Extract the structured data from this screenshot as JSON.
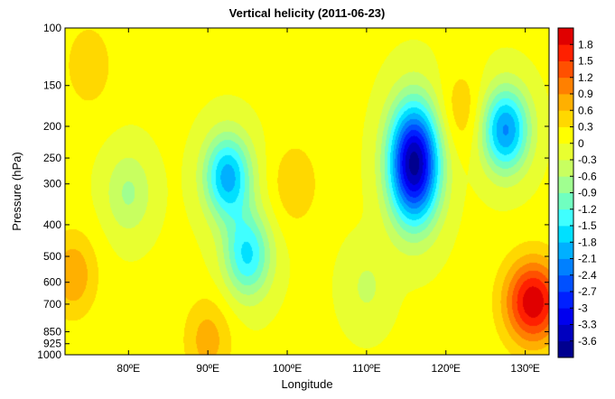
{
  "chart_data": {
    "type": "heatmap",
    "title": "Vertical helicity (2011-06-23)",
    "xlabel": "Longitude",
    "ylabel": "Pressure (hPa)",
    "x_range": [
      72,
      133
    ],
    "y_range": [
      100,
      1000
    ],
    "y_scale": "log",
    "x_ticks": [
      {
        "value": 80,
        "label": "80ºE"
      },
      {
        "value": 90,
        "label": "90ºE"
      },
      {
        "value": 100,
        "label": "100ºE"
      },
      {
        "value": 110,
        "label": "110ºE"
      },
      {
        "value": 120,
        "label": "120ºE"
      },
      {
        "value": 130,
        "label": "130ºE"
      }
    ],
    "y_ticks": [
      {
        "value": 100,
        "label": "100"
      },
      {
        "value": 150,
        "label": "150"
      },
      {
        "value": 200,
        "label": "200"
      },
      {
        "value": 250,
        "label": "250"
      },
      {
        "value": 300,
        "label": "300"
      },
      {
        "value": 400,
        "label": "400"
      },
      {
        "value": 500,
        "label": "500"
      },
      {
        "value": 600,
        "label": "600"
      },
      {
        "value": 700,
        "label": "700"
      },
      {
        "value": 850,
        "label": "850"
      },
      {
        "value": 925,
        "label": "925"
      },
      {
        "value": 1000,
        "label": "1000"
      }
    ],
    "colorbar": {
      "range": [
        -3.9,
        2.1
      ],
      "step": 0.3,
      "labels": [
        "1.8",
        "1.5",
        "1.2",
        "0.9",
        "0.6",
        "0.3",
        "0",
        "-0.3",
        "-0.6",
        "-0.9",
        "-1.2",
        "-1.5",
        "-1.8",
        "-2.1",
        "-2.4",
        "-2.7",
        "-3",
        "-3.3",
        "-3.6"
      ],
      "colors": [
        "#00008f",
        "#0000bf",
        "#0000ef",
        "#0020ff",
        "#0050ff",
        "#0080ff",
        "#00b0ff",
        "#00e0ff",
        "#40ffff",
        "#70ffc0",
        "#a0ff90",
        "#c8ff60",
        "#e8ff30",
        "#ffff00",
        "#ffd800",
        "#ffb000",
        "#ff8000",
        "#ff5000",
        "#ff2000",
        "#e00000"
      ]
    },
    "features": [
      {
        "lon": 116,
        "p": 260,
        "value": -3.8,
        "kind": "minimum"
      },
      {
        "lon": 127.5,
        "p": 205,
        "value": -2.2,
        "kind": "minimum"
      },
      {
        "lon": 92.5,
        "p": 285,
        "value": -2.0,
        "kind": "minimum"
      },
      {
        "lon": 95,
        "p": 495,
        "value": -1.6,
        "kind": "minimum"
      },
      {
        "lon": 80,
        "p": 320,
        "value": -0.7,
        "kind": "minimum"
      },
      {
        "lon": 131,
        "p": 690,
        "value": 2.0,
        "kind": "maximum"
      },
      {
        "lon": 73,
        "p": 570,
        "value": 0.8,
        "kind": "maximum"
      },
      {
        "lon": 90,
        "p": 900,
        "value": 0.7,
        "kind": "maximum"
      },
      {
        "lon": 75,
        "p": 130,
        "value": 0.5,
        "kind": "maximum"
      },
      {
        "lon": 101,
        "p": 300,
        "value": 0.5,
        "kind": "maximum"
      },
      {
        "lon": 122,
        "p": 180,
        "value": 0.5,
        "kind": "maximum"
      },
      {
        "lon": 110,
        "p": 620,
        "value": -0.4,
        "kind": "minimum"
      }
    ],
    "grid": false,
    "legend": "colorbar right"
  }
}
